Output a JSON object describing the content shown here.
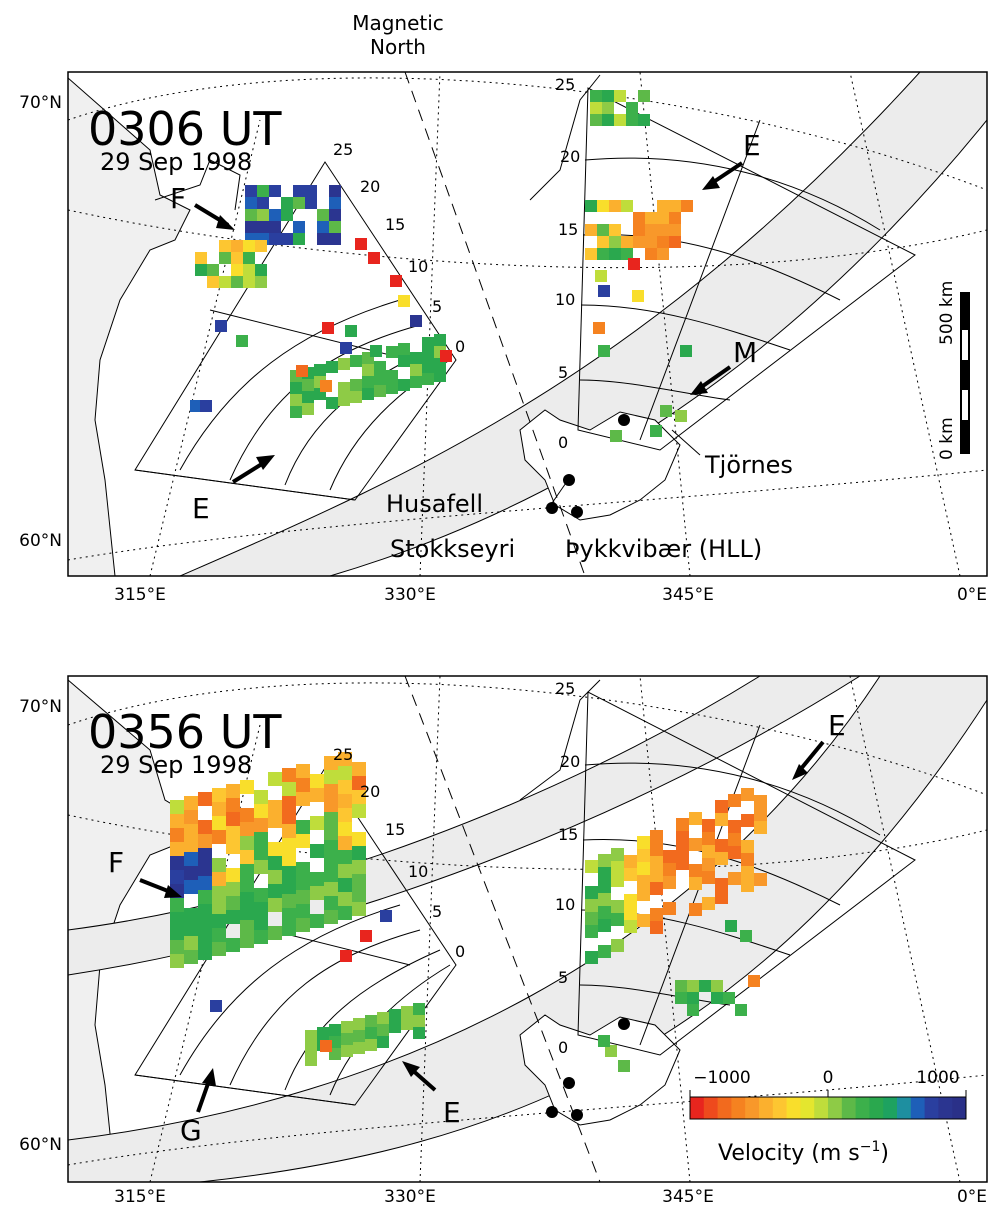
{
  "header": {
    "magnetic_north": [
      "Magnetic",
      "North"
    ]
  },
  "panels": [
    {
      "time": "0306 UT",
      "date": "29 Sep 1998",
      "lat_labels": [
        "70°N",
        "60°N"
      ],
      "lon_labels": [
        "315°E",
        "330°E",
        "345°E",
        "0°E"
      ],
      "annotations": [
        "F",
        "E",
        "E",
        "M"
      ],
      "left_range_gates": [
        "25",
        "20",
        "15",
        "10",
        "5",
        "0"
      ],
      "right_range_gates": [
        "25",
        "20",
        "15",
        "10",
        "5",
        "0"
      ],
      "stations": [
        "Husafell",
        "Stokkseyri",
        "Þykkvibær (HLL)",
        "Tjörnes"
      ],
      "scale": {
        "top": "500 km",
        "bottom": "0 km"
      }
    },
    {
      "time": "0356 UT",
      "date": "29 Sep 1998",
      "lat_labels": [
        "70°N",
        "60°N"
      ],
      "lon_labels": [
        "315°E",
        "330°E",
        "345°E",
        "0°E"
      ],
      "annotations": [
        "F",
        "G",
        "E",
        "E"
      ],
      "left_range_gates": [
        "25",
        "20",
        "15",
        "10",
        "5",
        "0"
      ],
      "right_range_gates": [
        "25",
        "20",
        "15",
        "10",
        "5",
        "0"
      ]
    }
  ],
  "colorbar": {
    "ticks": [
      "−1000",
      "0",
      "1000"
    ],
    "title": "Velocity (m s",
    "title_sup": "−1",
    "title_end": ")",
    "colors": [
      "#e8251e",
      "#ee4a1d",
      "#f26a1e",
      "#f58220",
      "#f8982a",
      "#fbb02e",
      "#fdc631",
      "#f9de2b",
      "#e4e62e",
      "#bfdd3b",
      "#8ecb46",
      "#5db948",
      "#3cb04b",
      "#2aa84e",
      "#1ea260",
      "#1e8fa0",
      "#1e5fb8",
      "#2a3f9f",
      "#2b3590",
      "#2a3088"
    ]
  },
  "colors": {
    "land": "#f0f0f0",
    "frame": "#000000"
  }
}
